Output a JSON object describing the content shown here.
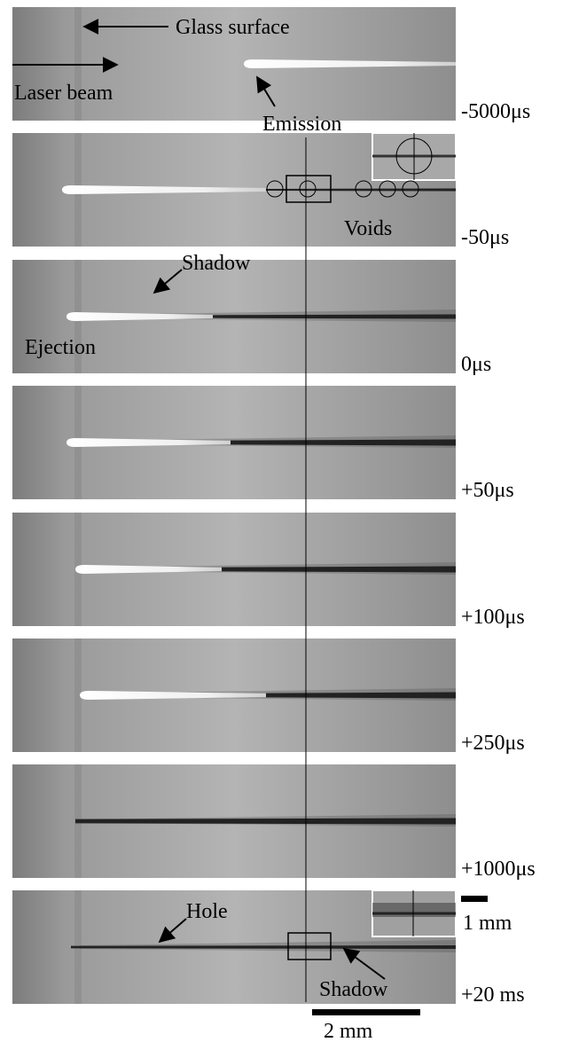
{
  "frames": [
    {
      "time": "-5000μs"
    },
    {
      "time": "-50μs"
    },
    {
      "time": "0μs"
    },
    {
      "time": "+50μs"
    },
    {
      "time": "+100μs"
    },
    {
      "time": "+250μs"
    },
    {
      "time": "+1000μs"
    },
    {
      "time": "+20 ms"
    }
  ],
  "annotations": {
    "glass_surface": "Glass surface",
    "laser_beam": "Laser beam",
    "emission": "Emission",
    "voids": "Voids",
    "shadow_top": "Shadow",
    "ejection": "Ejection",
    "hole": "Hole",
    "shadow_bottom": "Shadow"
  },
  "scale_bars": {
    "small": "1 mm",
    "large": "2 mm"
  }
}
